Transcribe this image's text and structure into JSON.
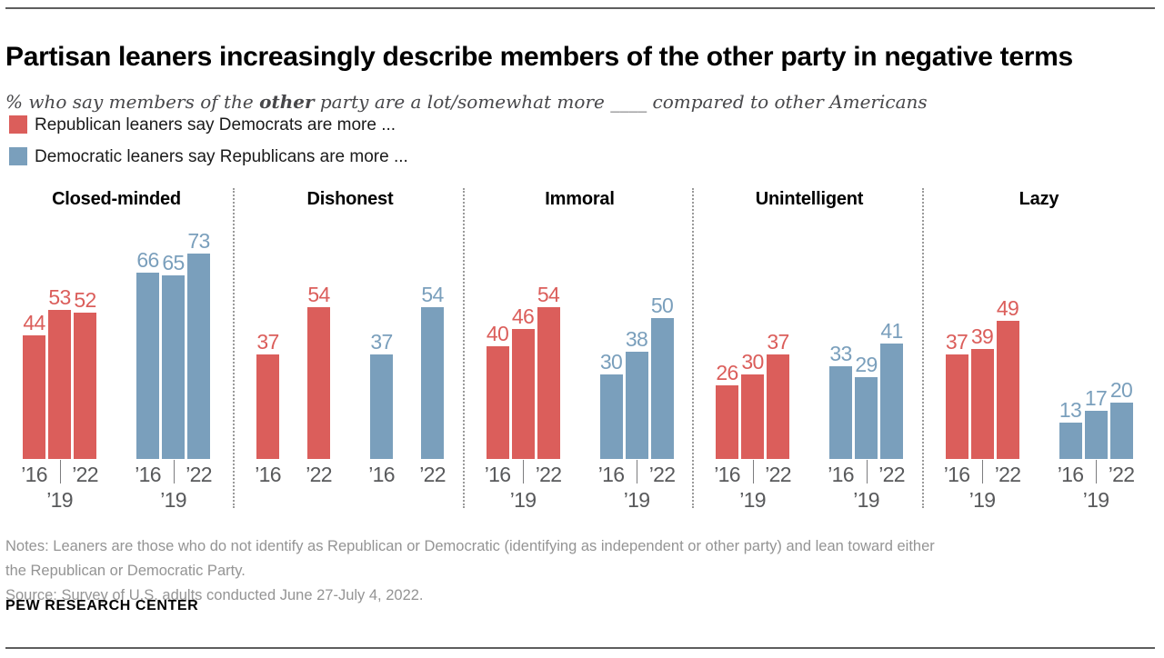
{
  "header": {
    "title": "Partisan leaners increasingly describe members of the other party in negative terms",
    "subtitle": {
      "pre": "% who say members of the ",
      "bold": "other",
      "post": " party are a lot/somewhat more ____ compared to other Americans"
    }
  },
  "legend": {
    "items": [
      {
        "id": "republican",
        "label": "Republican leaners say Democrats are more ...",
        "color": "#db5e5b"
      },
      {
        "id": "democratic",
        "label": "Democratic leaners say Republicans are more ...",
        "color": "#7a9fbc"
      }
    ]
  },
  "chart_data": {
    "type": "bar",
    "unit": "percent",
    "ylim": [
      0,
      80
    ],
    "grid": false,
    "value_labels": true,
    "legend_position": "top-left",
    "colors": {
      "republican": "#db5e5b",
      "democratic": "#7a9fbc"
    },
    "axis_text_color": "#58595b",
    "categories": [
      "Closed-minded",
      "Dishonest",
      "Immoral",
      "Unintelligent",
      "Lazy"
    ],
    "sections": [
      {
        "category": "Closed-minded",
        "years": [
          "’16",
          "’19",
          "’22"
        ],
        "republican": [
          44,
          53,
          52
        ],
        "democratic": [
          66,
          65,
          73
        ]
      },
      {
        "category": "Dishonest",
        "years": [
          "’16",
          "’22"
        ],
        "republican": [
          37,
          54
        ],
        "democratic": [
          37,
          54
        ]
      },
      {
        "category": "Immoral",
        "years": [
          "’16",
          "’19",
          "’22"
        ],
        "republican": [
          40,
          46,
          54
        ],
        "democratic": [
          30,
          38,
          50
        ]
      },
      {
        "category": "Unintelligent",
        "years": [
          "’16",
          "’19",
          "’22"
        ],
        "republican": [
          26,
          30,
          37
        ],
        "democratic": [
          33,
          29,
          41
        ]
      },
      {
        "category": "Lazy",
        "years": [
          "’16",
          "’19",
          "’22"
        ],
        "republican": [
          37,
          39,
          49
        ],
        "democratic": [
          13,
          17,
          20
        ]
      }
    ]
  },
  "footer": {
    "notes_line1": "Notes: Leaners are those who do not identify as Republican or Democratic (identifying as independent or other party) and lean toward either",
    "notes_line2": "the Republican or Democratic Party.",
    "source": "Source: Survey of U.S. adults conducted June 27-July 4, 2022.",
    "wordmark": "PEW RESEARCH CENTER"
  }
}
